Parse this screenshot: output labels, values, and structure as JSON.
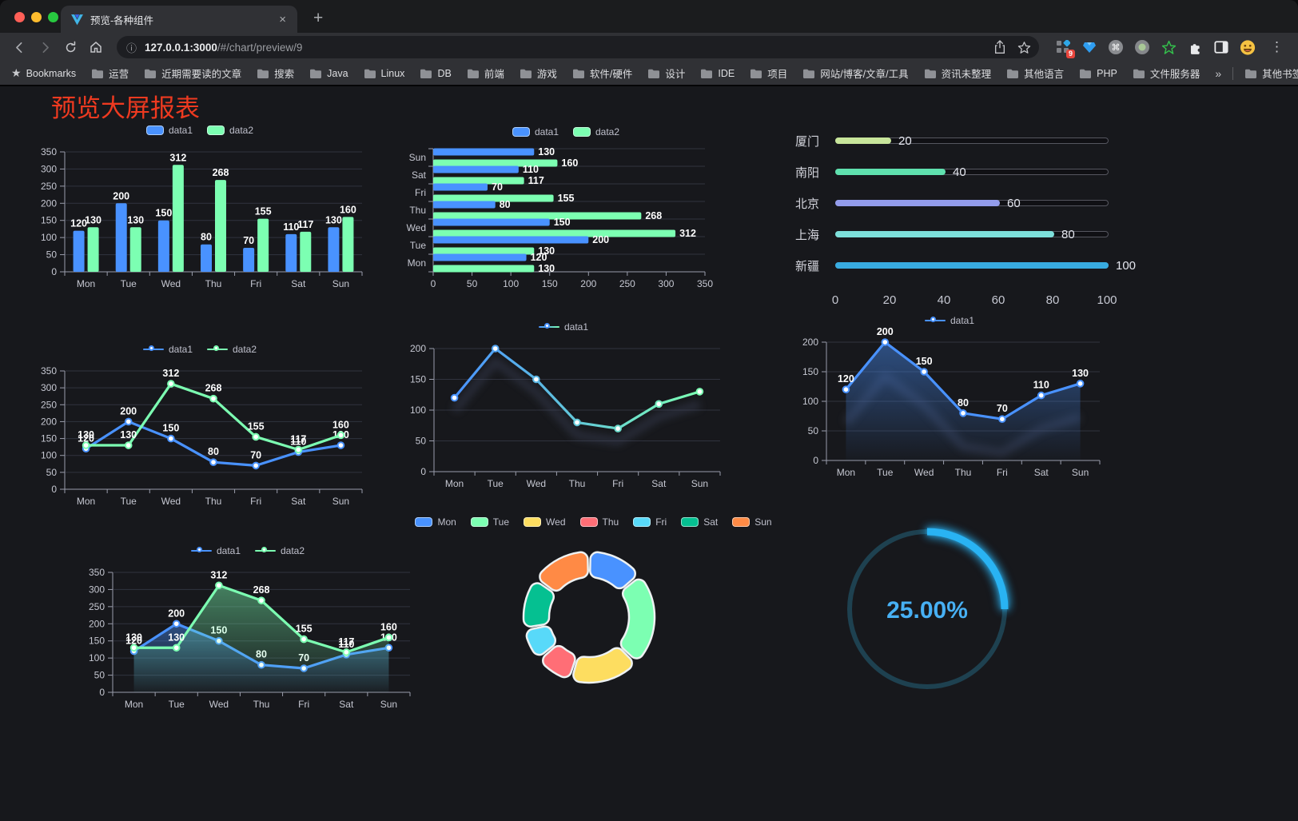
{
  "browser": {
    "tab_title": "预览-各种组件",
    "close_glyph": "×",
    "new_tab_glyph": "+",
    "menu_glyph": "⋮",
    "url_host": "127.0.0.1:3000",
    "url_path": "/#/chart/preview/9",
    "bookmarks_title": "Bookmarks",
    "bookmarks": [
      "运营",
      "近期需要读的文章",
      "搜索",
      "Java",
      "Linux",
      "DB",
      "前端",
      "游戏",
      "软件/硬件",
      "设计",
      "IDE",
      "项目",
      "网站/博客/文章/工具",
      "资讯未整理",
      "其他语言",
      "PHP",
      "文件服务器"
    ],
    "overflow_glyph": "»",
    "other_bookmarks": "其他书签",
    "extension_badge": "9"
  },
  "page": {
    "title": "预览大屏报表",
    "title_color": "#ee3a20",
    "background": "#17181c"
  },
  "chart_data": [
    {
      "type": "bar",
      "legend": "rect",
      "labels": true,
      "categories": [
        "Mon",
        "Tue",
        "Wed",
        "Thu",
        "Fri",
        "Sat",
        "Sun"
      ],
      "series": [
        {
          "name": "data1",
          "color": "#4992ff",
          "values": [
            120,
            200,
            150,
            80,
            70,
            110,
            130
          ]
        },
        {
          "name": "data2",
          "color": "#7cffb2",
          "values": [
            130,
            130,
            312,
            268,
            155,
            117,
            160
          ]
        }
      ],
      "ymax": 350,
      "ystep": 50
    },
    {
      "type": "hbar",
      "legend": "rect",
      "labels": true,
      "categories": [
        "Mon",
        "Tue",
        "Wed",
        "Thu",
        "Fri",
        "Sat",
        "Sun"
      ],
      "series": [
        {
          "name": "data1",
          "color": "#4992ff",
          "values": [
            120,
            200,
            150,
            80,
            70,
            110,
            130
          ]
        },
        {
          "name": "data2",
          "color": "#7cffb2",
          "values": [
            130,
            130,
            312,
            268,
            155,
            117,
            160
          ]
        }
      ],
      "xmax": 350,
      "xstep": 50
    },
    {
      "type": "progress",
      "max": 100,
      "ticks": [
        0,
        20,
        40,
        60,
        80,
        100
      ],
      "items": [
        {
          "label": "厦门",
          "value": 20,
          "color": "#c8e59b"
        },
        {
          "label": "南阳",
          "value": 40,
          "color": "#5fe0ae"
        },
        {
          "label": "北京",
          "value": 60,
          "color": "#939ceb"
        },
        {
          "label": "上海",
          "value": 80,
          "color": "#7ddfda"
        },
        {
          "label": "新疆",
          "value": 100,
          "color": "#38abe0"
        }
      ]
    },
    {
      "type": "line",
      "legend": "line",
      "labels": true,
      "markers": true,
      "categories": [
        "Mon",
        "Tue",
        "Wed",
        "Thu",
        "Fri",
        "Sat",
        "Sun"
      ],
      "series": [
        {
          "name": "data1",
          "color": "#4992ff",
          "values": [
            120,
            200,
            150,
            80,
            70,
            110,
            130
          ]
        },
        {
          "name": "data2",
          "color": "#7cffb2",
          "values": [
            130,
            130,
            312,
            268,
            155,
            117,
            160
          ]
        }
      ],
      "ymax": 350,
      "ystep": 50
    },
    {
      "type": "line",
      "legend": "line",
      "labels": false,
      "markers": true,
      "shadow": 16,
      "categories": [
        "Mon",
        "Tue",
        "Wed",
        "Thu",
        "Fri",
        "Sat",
        "Sun"
      ],
      "series": [
        {
          "name": "data1",
          "color": "#4992ff",
          "color2": "#7cffb2",
          "values": [
            120,
            200,
            150,
            80,
            70,
            110,
            130
          ]
        }
      ],
      "ymax": 200,
      "ystep": 50
    },
    {
      "type": "line",
      "legend": "line",
      "labels": true,
      "markers": true,
      "shadow": 42,
      "categories": [
        "Mon",
        "Tue",
        "Wed",
        "Thu",
        "Fri",
        "Sat",
        "Sun"
      ],
      "series": [
        {
          "name": "data1",
          "color": "#4992ff",
          "values": [
            120,
            200,
            150,
            80,
            70,
            110,
            130
          ],
          "area": true
        }
      ],
      "ymax": 200,
      "ystep": 50
    },
    {
      "type": "line",
      "legend": "line",
      "labels": true,
      "markers": true,
      "categories": [
        "Mon",
        "Tue",
        "Wed",
        "Thu",
        "Fri",
        "Sat",
        "Sun"
      ],
      "series": [
        {
          "name": "data1",
          "color": "#4992ff",
          "values": [
            120,
            200,
            150,
            80,
            70,
            110,
            130
          ],
          "area": true
        },
        {
          "name": "data2",
          "color": "#7cffb2",
          "values": [
            130,
            130,
            312,
            268,
            155,
            117,
            160
          ],
          "area": true
        }
      ],
      "ymax": 350,
      "ystep": 50
    },
    {
      "type": "pie",
      "items": [
        {
          "label": "Mon",
          "value": 120,
          "color": "#4992ff"
        },
        {
          "label": "Tue",
          "value": 200,
          "color": "#7cffb2"
        },
        {
          "label": "Wed",
          "value": 150,
          "color": "#fddd60"
        },
        {
          "label": "Thu",
          "value": 80,
          "color": "#ff6e76"
        },
        {
          "label": "Fri",
          "value": 70,
          "color": "#58d9f9"
        },
        {
          "label": "Sat",
          "value": 110,
          "color": "#05c091"
        },
        {
          "label": "Sun",
          "value": 130,
          "color": "#ff8a45"
        }
      ]
    },
    {
      "type": "gauge",
      "value": 25,
      "max": 100,
      "display": "25.00%",
      "color": "#29b3f3",
      "track_color": "#1e4150",
      "text_color": "#47b0f4"
    }
  ]
}
